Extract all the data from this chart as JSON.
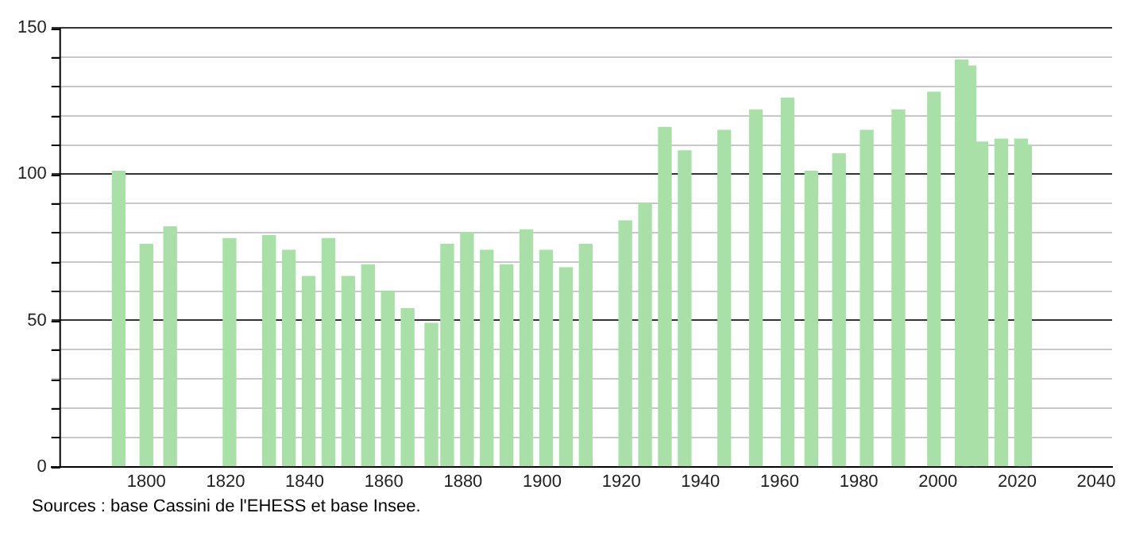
{
  "chart_data": {
    "type": "bar",
    "x": [
      1793,
      1800,
      1806,
      1821,
      1831,
      1836,
      1841,
      1846,
      1851,
      1856,
      1861,
      1866,
      1872,
      1876,
      1881,
      1886,
      1891,
      1896,
      1901,
      1906,
      1911,
      1921,
      1926,
      1931,
      1936,
      1946,
      1954,
      1962,
      1968,
      1975,
      1982,
      1990,
      1999,
      2006,
      2008,
      2011,
      2016,
      2021,
      2022
    ],
    "values": [
      101,
      76,
      82,
      78,
      79,
      74,
      65,
      78,
      65,
      69,
      60,
      54,
      49,
      76,
      80,
      74,
      69,
      81,
      74,
      68,
      76,
      84,
      90,
      116,
      108,
      115,
      122,
      126,
      101,
      107,
      115,
      122,
      128,
      139,
      137,
      111,
      112,
      112,
      110
    ],
    "color": "#a8e0a8",
    "xlim": [
      1776,
      2044
    ],
    "xticks": [
      1800,
      1820,
      1840,
      1860,
      1880,
      1900,
      1920,
      1940,
      1960,
      1980,
      2000,
      2020,
      2040
    ],
    "ylim": [
      0,
      150
    ],
    "yticks": [
      0,
      {
        "value": 10,
        "label": null
      },
      {
        "value": 20,
        "label": null
      },
      {
        "value": 30,
        "label": null
      },
      {
        "value": 40,
        "label": null
      },
      50,
      {
        "value": 60,
        "label": null
      },
      {
        "value": 70,
        "label": null
      },
      {
        "value": 80,
        "label": null
      },
      {
        "value": 90,
        "label": null
      },
      100,
      {
        "value": 110,
        "label": null
      },
      {
        "value": 120,
        "label": null
      },
      {
        "value": 130,
        "label": null
      },
      {
        "value": 140,
        "label": null
      },
      150
    ],
    "grid": "y",
    "legend": false,
    "annotations": [
      "Sources : base Cassini de l'EHESS et base Insee."
    ]
  }
}
